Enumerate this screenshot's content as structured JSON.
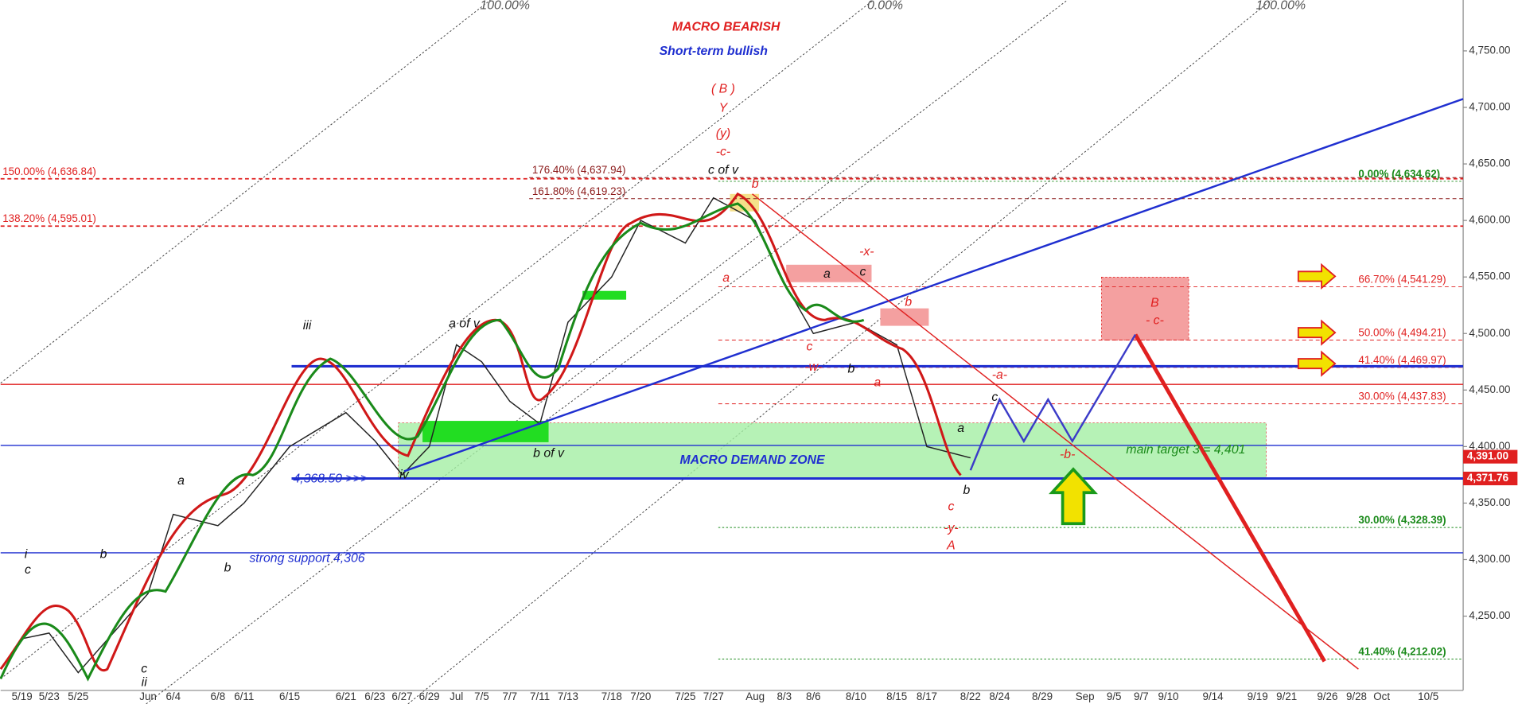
{
  "chart_data": {
    "type": "price",
    "title": "MACRO BEARISH",
    "subtitle": "Short-term bullish",
    "categories": [
      "5/19",
      "5/23",
      "5/25",
      "Jun",
      "6/4",
      "6/8",
      "6/11",
      "6/15",
      "6/21",
      "6/23",
      "6/27",
      "6/29",
      "Jul",
      "7/5",
      "7/7",
      "7/11",
      "7/13",
      "7/18",
      "7/20",
      "7/25",
      "7/27",
      "Aug",
      "8/3",
      "8/6",
      "8/10",
      "8/15",
      "8/17",
      "8/22",
      "8/24",
      "8/29",
      "Sep",
      "9/5",
      "9/7",
      "9/10",
      "9/14",
      "9/19",
      "9/21",
      "9/26",
      "9/28",
      "Oct",
      "10/5"
    ],
    "values": [
      4230,
      4235,
      4200,
      4270,
      4340,
      4330,
      4350,
      4400,
      4430,
      4405,
      4375,
      4400,
      4490,
      4475,
      4440,
      4420,
      4510,
      4550,
      4600,
      4580,
      4620,
      4600,
      4545,
      4500,
      4510,
      4490,
      4400,
      4390,
      null,
      null,
      null,
      null,
      null,
      null,
      null,
      null,
      null,
      null,
      null,
      null,
      null
    ],
    "color": "#222222",
    "ylim": [
      4186,
      4795
    ],
    "yticks": [
      {
        "value": 4250,
        "label": "4,250.00"
      },
      {
        "value": 4300,
        "label": "4,300.00"
      },
      {
        "value": 4350,
        "label": "4,350.00"
      },
      {
        "value": 4400,
        "label": "4,400.00"
      },
      {
        "value": 4450,
        "label": "4,450.00"
      },
      {
        "value": 4500,
        "label": "4,500.00"
      },
      {
        "value": 4550,
        "label": "4,550.00"
      },
      {
        "value": 4600,
        "label": "4,600.00"
      },
      {
        "value": 4650,
        "label": "4,650.00"
      },
      {
        "value": 4700,
        "label": "4,700.00"
      },
      {
        "value": 4750,
        "label": "4,750.00"
      }
    ],
    "levels": [
      {
        "value": 4636.84,
        "label": "150.00% (4,636.84)",
        "color": "#e02020",
        "side": "left"
      },
      {
        "value": 4595.01,
        "label": "138.20% (4,595.01)",
        "color": "#e02020",
        "side": "left"
      },
      {
        "value": 4637.94,
        "label": "176.40% (4,637.94)",
        "color": "#8b1a1a",
        "side": "center"
      },
      {
        "value": 4619.23,
        "label": "161.80% (4,619.23)",
        "color": "#8b1a1a",
        "side": "center"
      },
      {
        "value": 4634.62,
        "label": "0.00% (4,634.62)",
        "color": "#1a8a1a",
        "side": "right"
      },
      {
        "value": 4541.29,
        "label": "66.70% (4,541.29)",
        "color": "#e02020",
        "side": "right"
      },
      {
        "value": 4494.21,
        "label": "50.00% (4,494.21)",
        "color": "#e02020",
        "side": "right"
      },
      {
        "value": 4469.97,
        "label": "41.40% (4,469.97)",
        "color": "#e02020",
        "side": "right"
      },
      {
        "value": 4437.83,
        "label": "30.00% (4,437.83)",
        "color": "#e02020",
        "side": "right"
      },
      {
        "value": 4328.39,
        "label": "30.00% (4,328.39)",
        "color": "#1a8a1a",
        "side": "right"
      },
      {
        "value": 4212.02,
        "label": "41.40% (4,212.02)",
        "color": "#1a8a1a",
        "side": "right"
      }
    ],
    "lines": [
      {
        "value": 4471,
        "color": "#1f2fd0",
        "bold": true
      },
      {
        "value": 4455,
        "color": "#e02020",
        "bold": false
      },
      {
        "value": 4401,
        "color": "#1f2fd0",
        "bold": false
      },
      {
        "value": 4371.76,
        "color": "#1f2fd0",
        "bold": true
      },
      {
        "value": 4306,
        "color": "#1f2fd0",
        "bold": false
      }
    ],
    "demand_zone": [
      4371.76,
      4421
    ],
    "target_zone": [
      4494.21,
      4541.29
    ],
    "price_flags": [
      {
        "value": 4391,
        "label": "4,391.00"
      },
      {
        "value": 4371.76,
        "label": "4,371.76"
      }
    ],
    "annotations": [
      {
        "text": "MACRO BEARISH",
        "color": "#e02020"
      },
      {
        "text": "Short-term bullish",
        "color": "#1f2fd0"
      },
      {
        "text": "( B )",
        "color": "#e02020"
      },
      {
        "text": "Y",
        "color": "#e02020"
      },
      {
        "text": "(y)",
        "color": "#e02020"
      },
      {
        "text": "-c-",
        "color": "#e02020"
      },
      {
        "text": "c of v",
        "color": "#111111"
      },
      {
        "text": "iii",
        "color": "#111111"
      },
      {
        "text": "a of v",
        "color": "#111111"
      },
      {
        "text": "b of v",
        "color": "#111111"
      },
      {
        "text": "iv",
        "color": "#111111"
      },
      {
        "text": "4,368.50 >>>",
        "color": "#1f2fd0"
      },
      {
        "text": "strong support 4,306",
        "color": "#1f2fd0"
      },
      {
        "text": "MACRO DEMAND ZONE",
        "color": "#1f2fd0"
      },
      {
        "text": "main target 3 = 4,401",
        "color": "#1a8a1a"
      },
      {
        "text": "-x-",
        "color": "#e02020"
      },
      {
        "text": "-w-",
        "color": "#e02020"
      },
      {
        "text": "-a-",
        "color": "#e02020"
      },
      {
        "text": "-b-",
        "color": "#e02020"
      },
      {
        "text": "B",
        "color": "#e02020"
      },
      {
        "text": "- c-",
        "color": "#e02020"
      },
      {
        "text": "c",
        "color": "#e02020"
      },
      {
        "text": "-y-",
        "color": "#e02020"
      },
      {
        "text": "A",
        "color": "#e02020"
      },
      {
        "text": "i",
        "color": "#111111"
      },
      {
        "text": "c",
        "color": "#111111"
      },
      {
        "text": "b",
        "color": "#111111"
      },
      {
        "text": "a",
        "color": "#111111"
      },
      {
        "text": "b",
        "color": "#111111"
      },
      {
        "text": "c",
        "color": "#111111"
      },
      {
        "text": "ii",
        "color": "#111111"
      },
      {
        "text": "a",
        "color": "#e02020"
      },
      {
        "text": "b",
        "color": "#e02020"
      },
      {
        "text": "a",
        "color": "#111111"
      },
      {
        "text": "c",
        "color": "#111111"
      },
      {
        "text": "b",
        "color": "#e02020"
      },
      {
        "text": "c",
        "color": "#e02020"
      },
      {
        "text": "b",
        "color": "#111111"
      },
      {
        "text": "a",
        "color": "#e02020"
      },
      {
        "text": "c",
        "color": "#111111"
      },
      {
        "text": "a",
        "color": "#111111"
      },
      {
        "text": "b",
        "color": "#111111"
      },
      {
        "text": "100.00%",
        "color": "#555555"
      },
      {
        "text": "0.00%",
        "color": "#555555"
      },
      {
        "text": "100.00%",
        "color": "#555555"
      }
    ]
  }
}
